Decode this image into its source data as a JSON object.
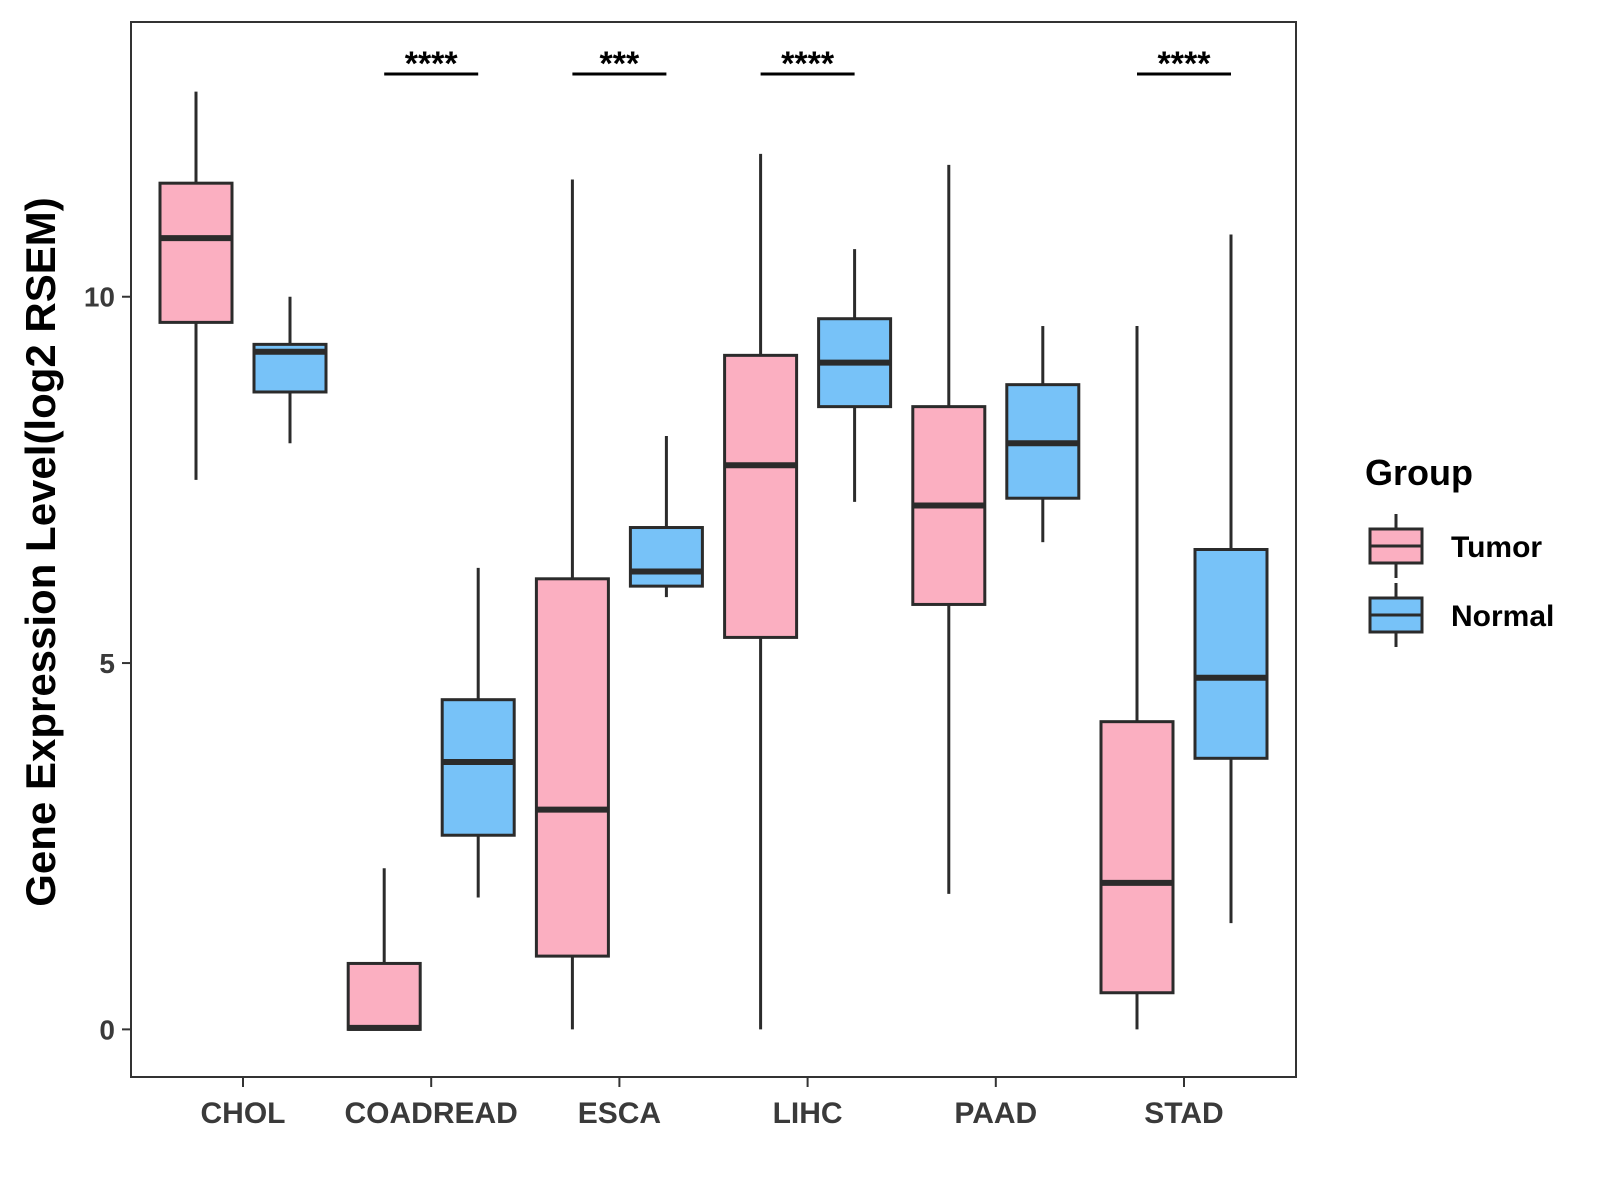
{
  "chart_data": {
    "type": "boxplot",
    "title": "",
    "xlabel": "",
    "ylabel": "Gene Expression Level(log2 RSEM)",
    "ylim": [
      -0.65,
      13.75
    ],
    "yticks": [
      0,
      5,
      10
    ],
    "grid": false,
    "legend": {
      "title": "Group",
      "placement": "right",
      "entries": [
        {
          "name": "Tumor",
          "color": "#fbafc1"
        },
        {
          "name": "Normal",
          "color": "#77c2f8"
        }
      ]
    },
    "categories": [
      "CHOL",
      "COADREAD",
      "ESCA",
      "LIHC",
      "PAAD",
      "STAD"
    ],
    "series": [
      {
        "name": "Tumor",
        "color": "#fbafc1",
        "boxes": [
          {
            "min": 7.5,
            "q1": 9.65,
            "median": 10.8,
            "q3": 11.55,
            "max": 12.8
          },
          {
            "min": 0.0,
            "q1": 0.0,
            "median": 0.02,
            "q3": 0.9,
            "max": 2.2
          },
          {
            "min": 0.0,
            "q1": 1.0,
            "median": 3.0,
            "q3": 6.15,
            "max": 11.6
          },
          {
            "min": 0.0,
            "q1": 5.35,
            "median": 7.7,
            "q3": 9.2,
            "max": 11.95
          },
          {
            "min": 1.85,
            "q1": 5.8,
            "median": 7.15,
            "q3": 8.5,
            "max": 11.8
          },
          {
            "min": 0.0,
            "q1": 0.5,
            "median": 2.0,
            "q3": 4.2,
            "max": 9.6
          }
        ]
      },
      {
        "name": "Normal",
        "color": "#77c2f8",
        "boxes": [
          {
            "min": 8.0,
            "q1": 8.7,
            "median": 9.25,
            "q3": 9.35,
            "max": 10.0
          },
          {
            "min": 1.8,
            "q1": 2.65,
            "median": 3.65,
            "q3": 4.5,
            "max": 6.3
          },
          {
            "min": 5.9,
            "q1": 6.05,
            "median": 6.25,
            "q3": 6.85,
            "max": 8.1
          },
          {
            "min": 7.2,
            "q1": 8.5,
            "median": 9.1,
            "q3": 9.7,
            "max": 10.65
          },
          {
            "min": 6.65,
            "q1": 7.25,
            "median": 8.0,
            "q3": 8.8,
            "max": 9.6
          },
          {
            "min": 1.45,
            "q1": 3.7,
            "median": 4.8,
            "q3": 6.55,
            "max": 10.85
          }
        ]
      }
    ],
    "annotations": [
      {
        "category": "CHOL",
        "label": ""
      },
      {
        "category": "COADREAD",
        "label": "****"
      },
      {
        "category": "ESCA",
        "label": "***"
      },
      {
        "category": "LIHC",
        "label": "****"
      },
      {
        "category": "PAAD",
        "label": ""
      },
      {
        "category": "STAD",
        "label": "****"
      }
    ]
  }
}
